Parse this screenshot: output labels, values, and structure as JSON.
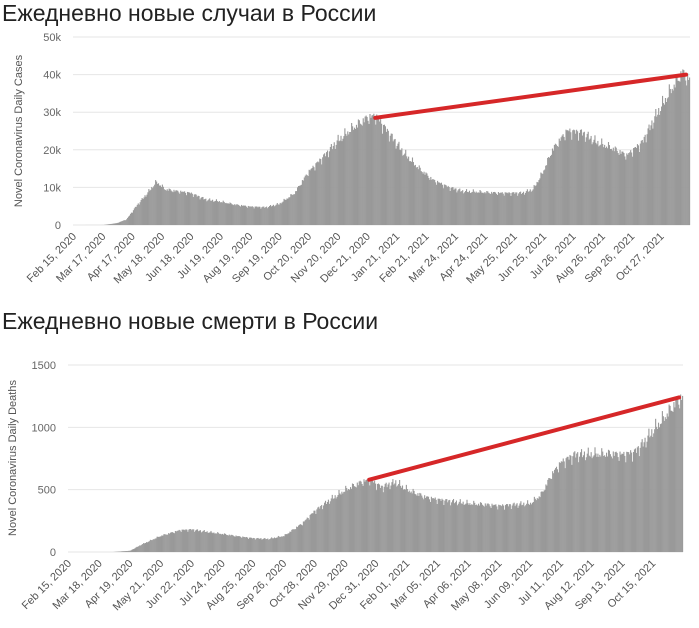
{
  "charts": [
    {
      "title": "Ежедневно новые случаи в России",
      "ylabel": "Novel Coronavirus Daily Cases",
      "colors": {
        "bars": "#999999",
        "trend": "#d62728",
        "grid": "#e6e6e6"
      }
    },
    {
      "title": "Ежедневно новые смерти в России",
      "ylabel": "Novel Coronavirus Daily Deaths",
      "colors": {
        "bars": "#999999",
        "trend": "#d62728",
        "grid": "#e6e6e6"
      }
    }
  ],
  "chart_data": [
    {
      "type": "bar",
      "title": "Ежедневно новые случаи в России",
      "xlabel": "",
      "ylabel": "Novel Coronavirus Daily Cases",
      "x_range": [
        "2020-02-15",
        "2021-11-15"
      ],
      "ylim": [
        0,
        50000
      ],
      "yticks": [
        0,
        10000,
        20000,
        30000,
        40000,
        50000
      ],
      "ytick_labels": [
        "0",
        "10k",
        "20k",
        "30k",
        "40k",
        "50k"
      ],
      "xtick_labels": [
        "Feb 15, 2020",
        "Mar 17, 2020",
        "Apr 17, 2020",
        "May 18, 2020",
        "Jun 18, 2020",
        "Jul 19, 2020",
        "Aug 19, 2020",
        "Sep 19, 2020",
        "Oct 20, 2020",
        "Nov 20, 2020",
        "Dec 21, 2020",
        "Jan 21, 2021",
        "Feb 21, 2021",
        "Mar 24, 2021",
        "Apr 24, 2021",
        "May 25, 2021",
        "Jun 25, 2021",
        "Jul 26, 2021",
        "Aug 26, 2021",
        "Sep 26, 2021",
        "Oct 27, 2021"
      ],
      "grid": true,
      "series": [
        {
          "points": [
            [
              "2020-02-15",
              0
            ],
            [
              "2020-03-17",
              10
            ],
            [
              "2020-03-31",
              500
            ],
            [
              "2020-04-10",
              1500
            ],
            [
              "2020-04-20",
              5000
            ],
            [
              "2020-04-30",
              8000
            ],
            [
              "2020-05-11",
              11500
            ],
            [
              "2020-05-20",
              9500
            ],
            [
              "2020-06-01",
              9000
            ],
            [
              "2020-06-15",
              8500
            ],
            [
              "2020-07-01",
              6800
            ],
            [
              "2020-07-15",
              6300
            ],
            [
              "2020-08-01",
              5400
            ],
            [
              "2020-08-15",
              4900
            ],
            [
              "2020-09-01",
              4700
            ],
            [
              "2020-09-15",
              5600
            ],
            [
              "2020-10-01",
              8500
            ],
            [
              "2020-10-15",
              14000
            ],
            [
              "2020-11-01",
              18500
            ],
            [
              "2020-11-15",
              22500
            ],
            [
              "2020-12-01",
              26000
            ],
            [
              "2020-12-15",
              28500
            ],
            [
              "2020-12-24",
              29000
            ],
            [
              "2021-01-05",
              25000
            ],
            [
              "2021-01-21",
              19500
            ],
            [
              "2021-02-05",
              15500
            ],
            [
              "2021-02-21",
              12000
            ],
            [
              "2021-03-10",
              10000
            ],
            [
              "2021-03-24",
              9000
            ],
            [
              "2021-04-10",
              8800
            ],
            [
              "2021-05-01",
              8500
            ],
            [
              "2021-05-25",
              8500
            ],
            [
              "2021-06-05",
              9500
            ],
            [
              "2021-06-15",
              14000
            ],
            [
              "2021-06-25",
              20000
            ],
            [
              "2021-07-10",
              25000
            ],
            [
              "2021-07-26",
              24500
            ],
            [
              "2021-08-10",
              22000
            ],
            [
              "2021-08-26",
              20500
            ],
            [
              "2021-09-10",
              18500
            ],
            [
              "2021-09-26",
              22000
            ],
            [
              "2021-10-10",
              29000
            ],
            [
              "2021-10-27",
              36500
            ],
            [
              "2021-11-06",
              40500
            ],
            [
              "2021-11-15",
              38500
            ]
          ]
        }
      ],
      "trend_line": {
        "from": [
          "2020-12-24",
          28500
        ],
        "to": [
          "2021-11-15",
          40000
        ]
      }
    },
    {
      "type": "bar",
      "title": "Ежедневно новые смерти в России",
      "xlabel": "",
      "ylabel": "Novel Coronavirus Daily Deaths",
      "x_range": [
        "2020-02-15",
        "2021-11-15"
      ],
      "ylim": [
        0,
        1500
      ],
      "yticks": [
        0,
        500,
        1000,
        1500
      ],
      "ytick_labels": [
        "0",
        "500",
        "1000",
        "1500"
      ],
      "xtick_labels": [
        "Feb 15, 2020",
        "Mar 18, 2020",
        "Apr 19, 2020",
        "May 21, 2020",
        "Jun 22, 2020",
        "Jul 24, 2020",
        "Aug 25, 2020",
        "Sep 26, 2020",
        "Oct 28, 2020",
        "Nov 29, 2020",
        "Dec 31, 2020",
        "Feb 01, 2021",
        "Mar 05, 2021",
        "Apr 06, 2021",
        "May 08, 2021",
        "Jun 09, 2021",
        "Jul 11, 2021",
        "Aug 12, 2021",
        "Sep 13, 2021",
        "Oct 15, 2021"
      ],
      "grid": true,
      "series": [
        {
          "points": [
            [
              "2020-02-15",
              0
            ],
            [
              "2020-04-01",
              0
            ],
            [
              "2020-04-19",
              10
            ],
            [
              "2020-05-01",
              60
            ],
            [
              "2020-05-21",
              130
            ],
            [
              "2020-06-10",
              175
            ],
            [
              "2020-06-22",
              180
            ],
            [
              "2020-07-10",
              160
            ],
            [
              "2020-07-24",
              145
            ],
            [
              "2020-08-10",
              125
            ],
            [
              "2020-08-25",
              110
            ],
            [
              "2020-09-10",
              105
            ],
            [
              "2020-09-26",
              130
            ],
            [
              "2020-10-15",
              230
            ],
            [
              "2020-10-28",
              330
            ],
            [
              "2020-11-15",
              430
            ],
            [
              "2020-11-29",
              500
            ],
            [
              "2020-12-15",
              560
            ],
            [
              "2020-12-24",
              580
            ],
            [
              "2021-01-05",
              520
            ],
            [
              "2021-01-20",
              560
            ],
            [
              "2021-02-01",
              500
            ],
            [
              "2021-02-20",
              440
            ],
            [
              "2021-03-05",
              420
            ],
            [
              "2021-03-25",
              400
            ],
            [
              "2021-04-06",
              390
            ],
            [
              "2021-04-25",
              380
            ],
            [
              "2021-05-08",
              370
            ],
            [
              "2021-05-25",
              380
            ],
            [
              "2021-06-09",
              390
            ],
            [
              "2021-06-20",
              460
            ],
            [
              "2021-07-01",
              620
            ],
            [
              "2021-07-11",
              720
            ],
            [
              "2021-07-25",
              780
            ],
            [
              "2021-08-12",
              785
            ],
            [
              "2021-08-30",
              790
            ],
            [
              "2021-09-13",
              780
            ],
            [
              "2021-09-25",
              800
            ],
            [
              "2021-10-05",
              880
            ],
            [
              "2021-10-15",
              980
            ],
            [
              "2021-10-28",
              1100
            ],
            [
              "2021-11-08",
              1210
            ],
            [
              "2021-11-15",
              1240
            ]
          ]
        }
      ],
      "trend_line": {
        "from": [
          "2020-12-24",
          580
        ],
        "to": [
          "2021-11-15",
          1240
        ]
      }
    }
  ]
}
